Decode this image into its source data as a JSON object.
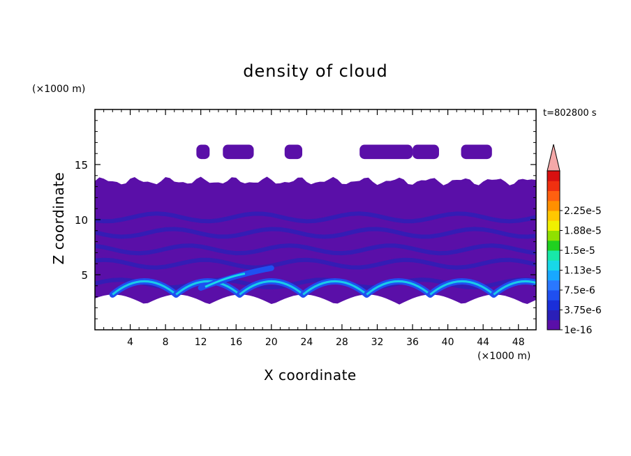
{
  "chart_data": {
    "type": "heatmap",
    "title": "density of cloud",
    "xlabel": "X coordinate",
    "ylabel": "Z coordinate",
    "x_unit": "(×1000 m)",
    "y_unit": "(×1000 m)",
    "timestamp": "t=802800 s",
    "xlim": [
      0,
      50
    ],
    "ylim": [
      0,
      20
    ],
    "x_ticks": [
      4,
      8,
      12,
      16,
      20,
      24,
      28,
      32,
      36,
      40,
      44,
      48
    ],
    "x_tick_labels": [
      "4",
      "8",
      "12",
      "16",
      "20",
      "24",
      "28",
      "32",
      "36",
      "40",
      "44",
      "48"
    ],
    "y_ticks": [
      5,
      10,
      15
    ],
    "y_tick_labels": [
      "5",
      "10",
      "15"
    ],
    "colorbar": {
      "labels": [
        "1e-16",
        "3.75e-6",
        "7.5e-6",
        "1.13e-5",
        "1.5e-5",
        "1.88e-5",
        "2.25e-5"
      ],
      "colors": [
        "#5a0fa8",
        "#2a1fb8",
        "#1a2ed8",
        "#1f4ff0",
        "#2a78ff",
        "#18a8ff",
        "#18d8e8",
        "#18e8a8",
        "#20d020",
        "#90e000",
        "#f0f000",
        "#ffc800",
        "#ff9000",
        "#ff6010",
        "#f03010",
        "#d81010"
      ],
      "overflow_color": "#f4a8a8"
    },
    "layers": {
      "main_cloud_z": [
        2.5,
        13.5
      ],
      "upper_cloud_z": [
        15.5,
        16.8
      ],
      "enhanced_band_z": [
        3,
        5.5
      ]
    },
    "grid": false,
    "legend": "colorbar-right"
  },
  "colors": {
    "base": "#5a0fa8",
    "mid": "#2a1fb8",
    "band": "#1f4ff0",
    "peak": "#18d8e8"
  }
}
